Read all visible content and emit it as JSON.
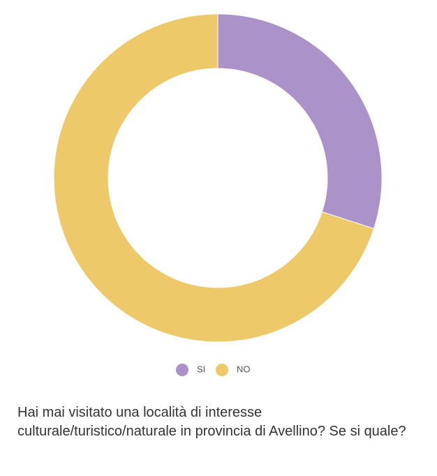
{
  "chart_data": {
    "type": "donut",
    "title": "Hai mai visitato una località di interesse culturale/turistico/naturale in provincia di Avellino? Se si quale?",
    "categories": [
      "SI",
      "NO"
    ],
    "values": [
      30,
      70
    ],
    "colors": [
      "#ab92c8",
      "#edc96a"
    ]
  }
}
